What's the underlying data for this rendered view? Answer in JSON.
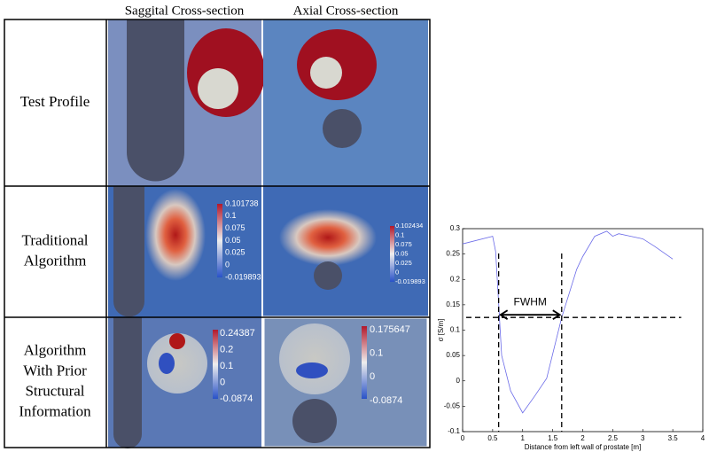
{
  "figure": {
    "column_headers": [
      "Saggital Cross-section",
      "Axial Cross-section"
    ],
    "row_labels": [
      [
        "Test Profile"
      ],
      [
        "Traditional",
        "Algorithm"
      ],
      [
        "Algorithm",
        "With Prior",
        "Structural",
        "Information"
      ]
    ],
    "colorbars": [
      [
        "0.101738",
        "0.1",
        "0.075",
        "0.05",
        "0.025",
        "0",
        "-0.019893"
      ],
      [
        "0.102434",
        "0.1",
        "0.075",
        "0.05",
        "0.025",
        "0",
        "-0.019893"
      ],
      [
        "0.24387",
        "0.2",
        "0.1",
        "0",
        "-0.0874"
      ],
      [
        "0.175647",
        "0.1",
        "0",
        "-0.0874"
      ]
    ]
  },
  "chart_data": {
    "type": "line",
    "xlabel": "Distance from left wall of prostate [m]",
    "ylabel": "σ [S/m]",
    "annotation": "FWHM",
    "x": [
      0,
      0.5,
      0.55,
      0.65,
      0.8,
      1.0,
      1.2,
      1.4,
      1.65,
      1.9,
      2.0,
      2.2,
      2.4,
      2.5,
      2.6,
      2.8,
      3.0,
      3.2,
      3.5
    ],
    "series": [
      {
        "color": "#6a6ae8",
        "values": [
          0.27,
          0.285,
          0.255,
          0.05,
          -0.02,
          -0.063,
          -0.03,
          0.005,
          0.125,
          0.22,
          0.245,
          0.285,
          0.295,
          0.285,
          0.29,
          0.285,
          0.28,
          0.265,
          0.24
        ]
      }
    ],
    "fwhm": {
      "left": 0.6,
      "right": 1.65,
      "level": 0.125
    },
    "xlim": [
      0,
      4
    ],
    "ylim": [
      -0.1,
      0.3
    ],
    "xticks": [
      0,
      0.5,
      1,
      1.5,
      2,
      2.5,
      3,
      3.5,
      4
    ],
    "yticks": [
      -0.1,
      -0.05,
      0,
      0.05,
      0.1,
      0.15,
      0.2,
      0.25,
      0.3
    ]
  }
}
